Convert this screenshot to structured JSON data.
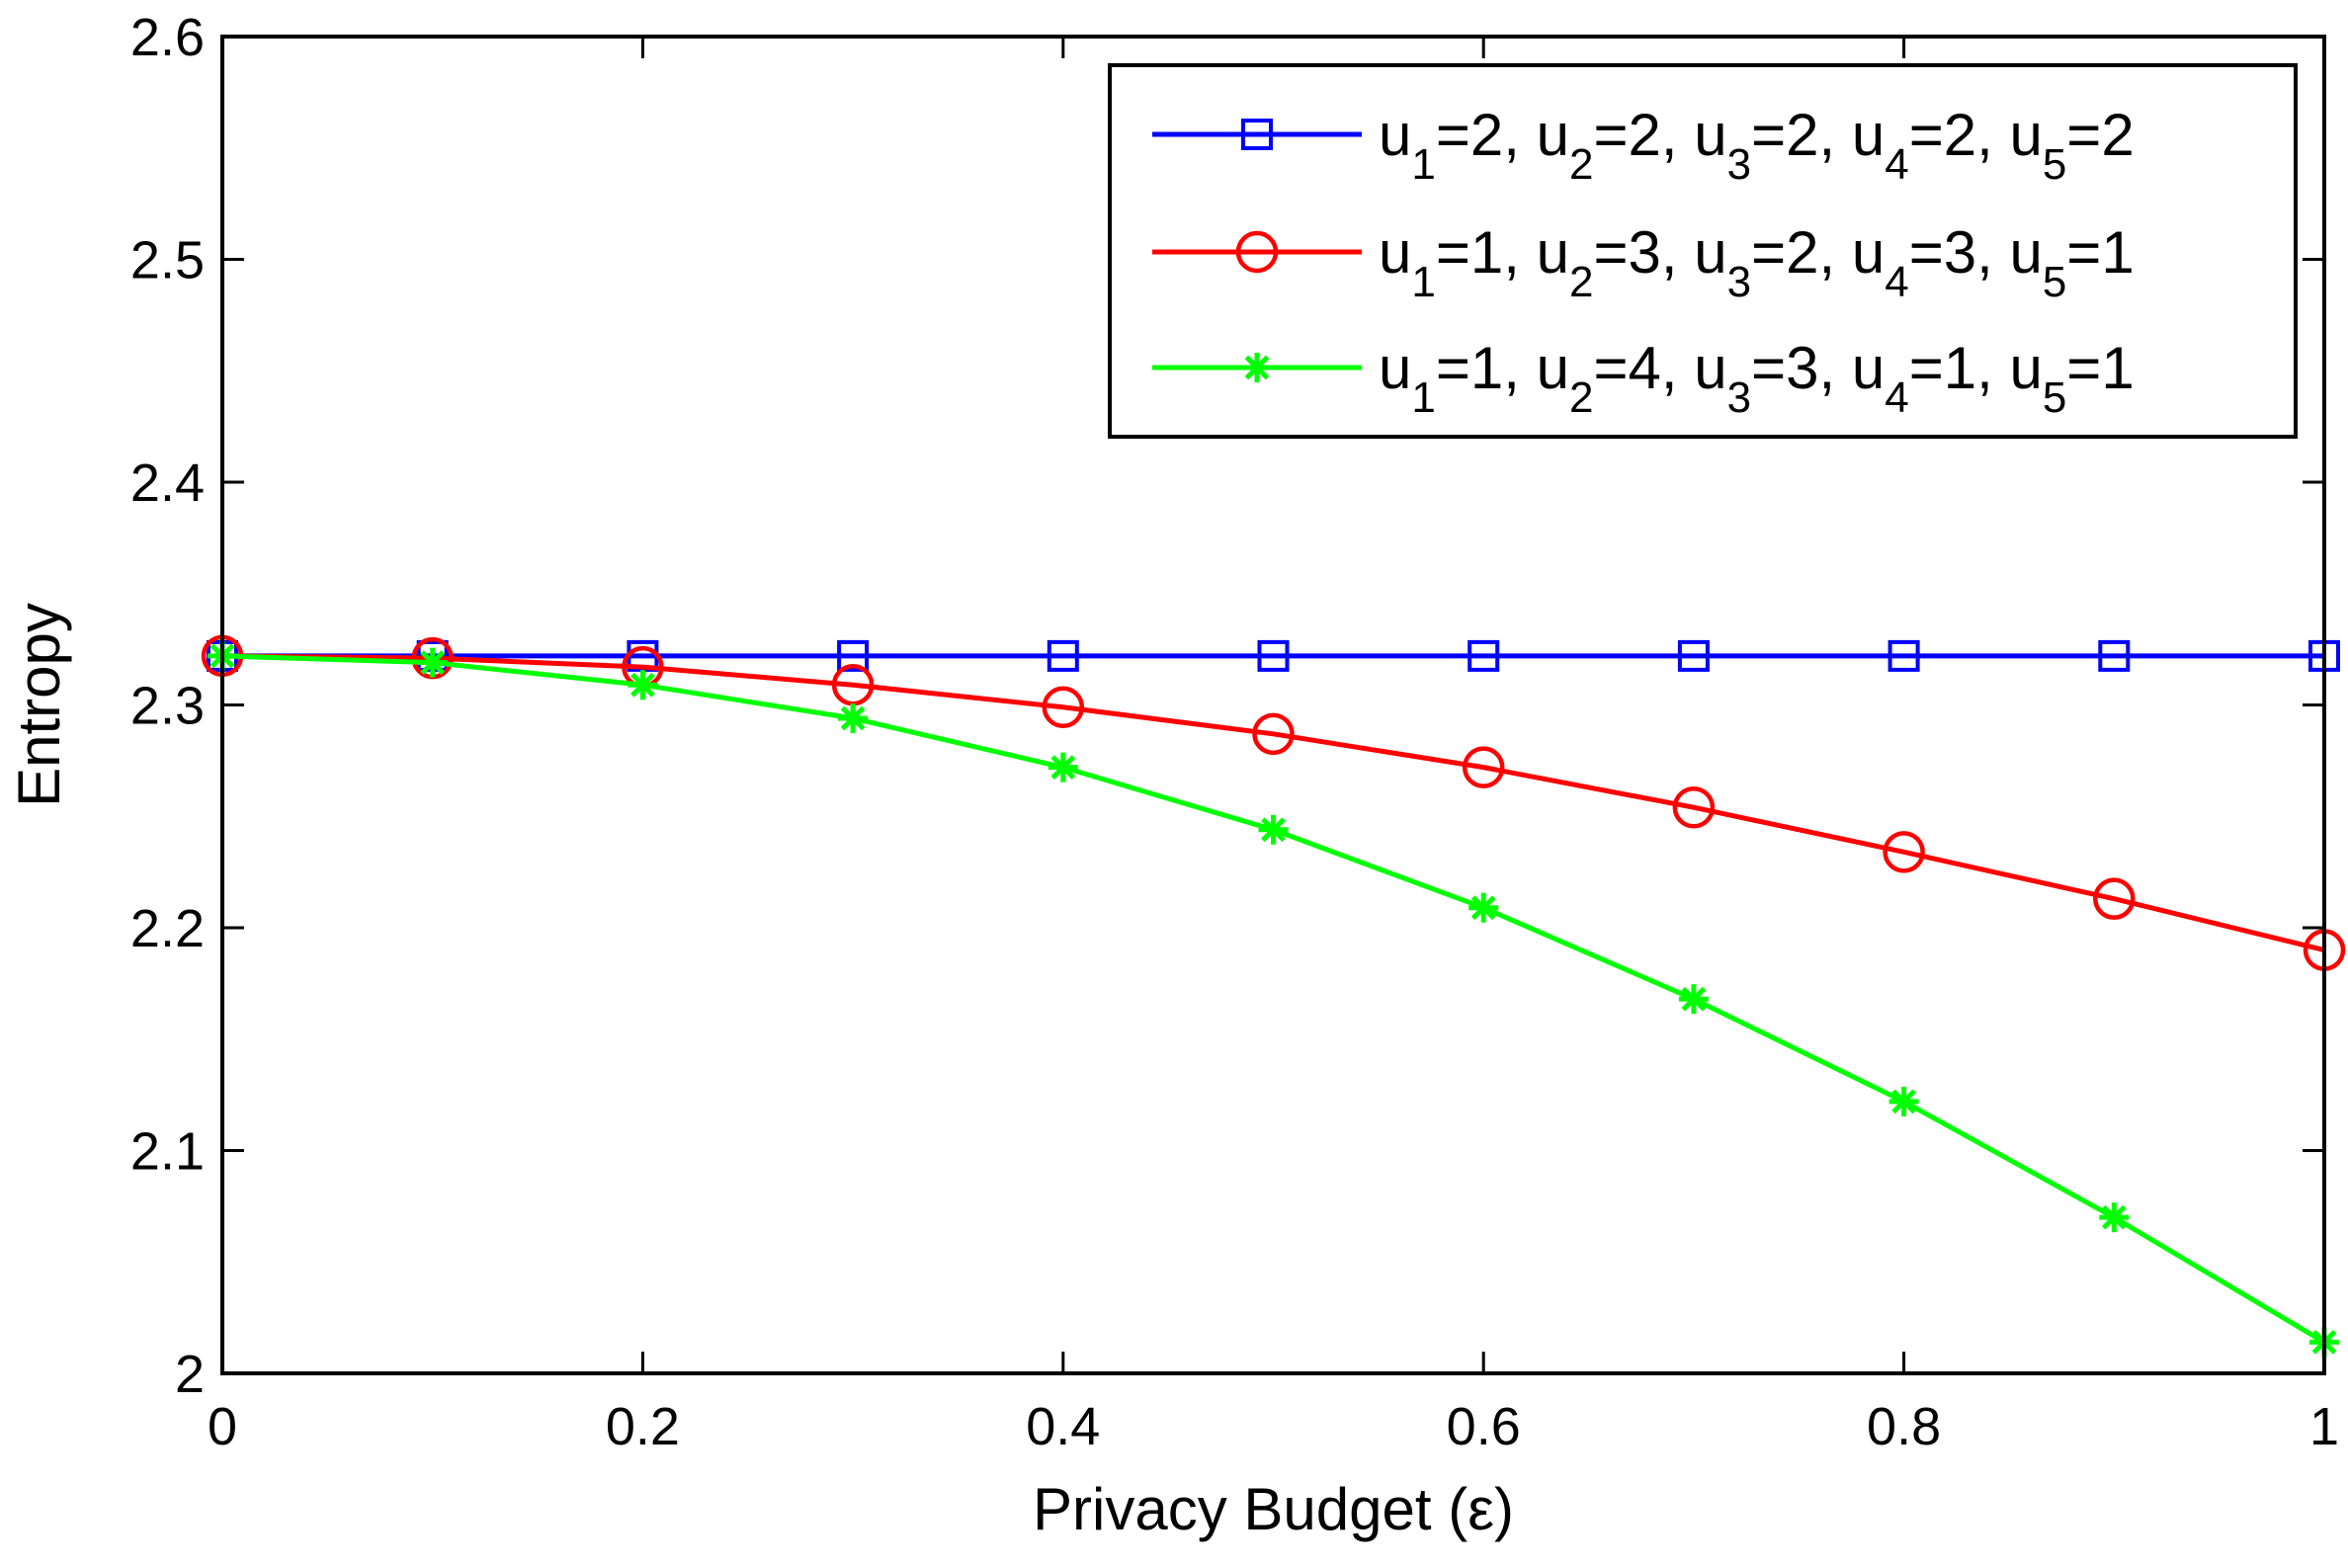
{
  "chart_data": {
    "type": "line",
    "title": "",
    "xlabel": "Privacy Budget (ε)",
    "ylabel": "Entropy",
    "xlim": [
      0,
      1
    ],
    "ylim": [
      2.0,
      2.6
    ],
    "x_ticks": [
      "0",
      "0.2",
      "0.4",
      "0.6",
      "0.8",
      "1"
    ],
    "y_ticks": [
      "2",
      "2.1",
      "2.2",
      "2.3",
      "2.4",
      "2.5",
      "2.6"
    ],
    "grid": false,
    "legend_position": "top-right",
    "x": [
      0,
      0.1,
      0.2,
      0.3,
      0.4,
      0.5,
      0.6,
      0.7,
      0.8,
      0.9,
      1.0
    ],
    "series": [
      {
        "name": "u1=2, u2=2, u3=2, u4=2, u5=2",
        "legend_parts": [
          {
            "t": "u",
            "sub": "1",
            "after": "=2, "
          },
          {
            "t": "u",
            "sub": "2",
            "after": "=2, "
          },
          {
            "t": "u",
            "sub": "3",
            "after": "=2, "
          },
          {
            "t": "u",
            "sub": "4",
            "after": "=2, "
          },
          {
            "t": "u",
            "sub": "5",
            "after": "=2"
          }
        ],
        "color": "#0000ff",
        "marker": "square",
        "values": [
          2.322,
          2.322,
          2.322,
          2.322,
          2.322,
          2.322,
          2.322,
          2.322,
          2.322,
          2.322,
          2.322
        ]
      },
      {
        "name": "u1=1, u2=3, u3=2, u4=3, u5=1",
        "legend_parts": [
          {
            "t": "u",
            "sub": "1",
            "after": "=1, "
          },
          {
            "t": "u",
            "sub": "2",
            "after": "=3, "
          },
          {
            "t": "u",
            "sub": "3",
            "after": "=2, "
          },
          {
            "t": "u",
            "sub": "4",
            "after": "=3, "
          },
          {
            "t": "u",
            "sub": "5",
            "after": "=1"
          }
        ],
        "color": "#ff0000",
        "marker": "circle",
        "values": [
          2.322,
          2.321,
          2.317,
          2.309,
          2.299,
          2.287,
          2.272,
          2.254,
          2.234,
          2.213,
          2.19
        ]
      },
      {
        "name": "u1=1, u2=4, u3=3, u4=1, u5=1",
        "legend_parts": [
          {
            "t": "u",
            "sub": "1",
            "after": "=1, "
          },
          {
            "t": "u",
            "sub": "2",
            "after": "=4, "
          },
          {
            "t": "u",
            "sub": "3",
            "after": "=3, "
          },
          {
            "t": "u",
            "sub": "4",
            "after": "=1, "
          },
          {
            "t": "u",
            "sub": "5",
            "after": "=1"
          }
        ],
        "color": "#00ff00",
        "marker": "asterisk",
        "values": [
          2.322,
          2.319,
          2.309,
          2.294,
          2.272,
          2.244,
          2.209,
          2.168,
          2.122,
          2.07,
          2.014
        ]
      }
    ]
  }
}
